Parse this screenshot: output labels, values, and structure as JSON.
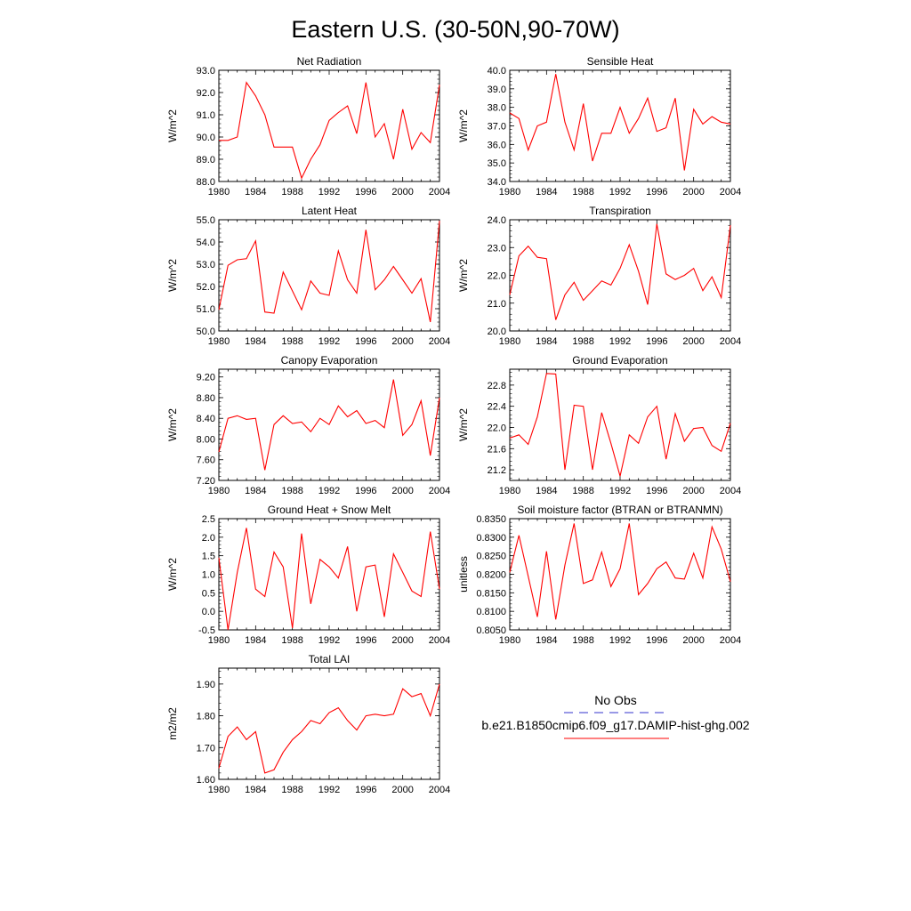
{
  "title": "Eastern U.S. (30-50N,90-70W)",
  "legend": {
    "obs_label": "No Obs",
    "model_label": "b.e21.B1850cmip6.f09_g17.DAMIP-hist-ghg.002",
    "obs_color": "#3333cc",
    "model_color": "#ff0000"
  },
  "chart_data": [
    {
      "type": "line",
      "title": "Net Radiation",
      "ylabel": "W/m^2",
      "xlim": [
        1980,
        2004
      ],
      "ylim": [
        88.0,
        93.0
      ],
      "x_ticks": [
        "1980",
        "1984",
        "1988",
        "1992",
        "1996",
        "2000",
        "2004"
      ],
      "y_ticks": [
        "88.0",
        "89.0",
        "90.0",
        "91.0",
        "92.0",
        "93.0"
      ],
      "x": [
        1980,
        1981,
        1982,
        1983,
        1984,
        1985,
        1986,
        1987,
        1988,
        1989,
        1990,
        1991,
        1992,
        1993,
        1994,
        1995,
        1996,
        1997,
        1998,
        1999,
        2000,
        2001,
        2002,
        2003,
        2004
      ],
      "values": [
        89.85,
        89.85,
        90.0,
        92.45,
        91.85,
        91.0,
        89.55,
        89.55,
        89.55,
        88.15,
        89.0,
        89.65,
        90.75,
        91.1,
        91.4,
        90.15,
        92.45,
        90.0,
        90.6,
        89.0,
        91.25,
        89.45,
        90.2,
        89.75,
        92.35
      ]
    },
    {
      "type": "line",
      "title": "Sensible Heat",
      "ylabel": "W/m^2",
      "xlim": [
        1980,
        2004
      ],
      "ylim": [
        34.0,
        40.0
      ],
      "x_ticks": [
        "1980",
        "1984",
        "1988",
        "1992",
        "1996",
        "2000",
        "2004"
      ],
      "y_ticks": [
        "34.0",
        "35.0",
        "36.0",
        "37.0",
        "38.0",
        "39.0",
        "40.0"
      ],
      "x": [
        1980,
        1981,
        1982,
        1983,
        1984,
        1985,
        1986,
        1987,
        1988,
        1989,
        1990,
        1991,
        1992,
        1993,
        1994,
        1995,
        1996,
        1997,
        1998,
        1999,
        2000,
        2001,
        2002,
        2003,
        2004
      ],
      "values": [
        37.7,
        37.4,
        35.7,
        37.0,
        37.2,
        39.8,
        37.2,
        35.7,
        38.2,
        35.1,
        36.6,
        36.6,
        38.0,
        36.6,
        37.4,
        38.5,
        36.7,
        36.9,
        38.5,
        34.6,
        37.9,
        37.1,
        37.5,
        37.2,
        37.1
      ]
    },
    {
      "type": "line",
      "title": "Latent Heat",
      "ylabel": "W/m^2",
      "xlim": [
        1980,
        2004
      ],
      "ylim": [
        50.0,
        55.0
      ],
      "x_ticks": [
        "1980",
        "1984",
        "1988",
        "1992",
        "1996",
        "2000",
        "2004"
      ],
      "y_ticks": [
        "50.0",
        "51.0",
        "52.0",
        "53.0",
        "54.0",
        "55.0"
      ],
      "x": [
        1980,
        1981,
        1982,
        1983,
        1984,
        1985,
        1986,
        1987,
        1988,
        1989,
        1990,
        1991,
        1992,
        1993,
        1994,
        1995,
        1996,
        1997,
        1998,
        1999,
        2000,
        2001,
        2002,
        2003,
        2004
      ],
      "values": [
        50.95,
        52.95,
        53.2,
        53.25,
        54.05,
        50.85,
        50.8,
        52.65,
        51.8,
        50.95,
        52.25,
        51.7,
        51.6,
        53.6,
        52.3,
        51.7,
        54.55,
        51.85,
        52.3,
        52.9,
        52.3,
        51.7,
        52.35,
        50.4,
        54.95
      ]
    },
    {
      "type": "line",
      "title": "Transpiration",
      "ylabel": "W/m^2",
      "xlim": [
        1980,
        2004
      ],
      "ylim": [
        20.0,
        24.0
      ],
      "x_ticks": [
        "1980",
        "1984",
        "1988",
        "1992",
        "1996",
        "2000",
        "2004"
      ],
      "y_ticks": [
        "20.0",
        "21.0",
        "22.0",
        "23.0",
        "24.0"
      ],
      "x": [
        1980,
        1981,
        1982,
        1983,
        1984,
        1985,
        1986,
        1987,
        1988,
        1989,
        1990,
        1991,
        1992,
        1993,
        1994,
        1995,
        1996,
        1997,
        1998,
        1999,
        2000,
        2001,
        2002,
        2003,
        2004
      ],
      "values": [
        21.3,
        22.7,
        23.05,
        22.65,
        22.6,
        20.4,
        21.3,
        21.75,
        21.1,
        21.45,
        21.8,
        21.65,
        22.25,
        23.1,
        22.15,
        20.95,
        23.85,
        22.05,
        21.85,
        22.0,
        22.25,
        21.45,
        21.95,
        21.2,
        23.8
      ]
    },
    {
      "type": "line",
      "title": "Canopy Evaporation",
      "ylabel": "W/m^2",
      "xlim": [
        1980,
        2004
      ],
      "ylim": [
        7.2,
        9.35
      ],
      "x_ticks": [
        "1980",
        "1984",
        "1988",
        "1992",
        "1996",
        "2000",
        "2004"
      ],
      "y_ticks": [
        "7.20",
        "7.60",
        "8.00",
        "8.40",
        "8.80",
        "9.20"
      ],
      "x": [
        1980,
        1981,
        1982,
        1983,
        1984,
        1985,
        1986,
        1987,
        1988,
        1989,
        1990,
        1991,
        1992,
        1993,
        1994,
        1995,
        1996,
        1997,
        1998,
        1999,
        2000,
        2001,
        2002,
        2003,
        2004
      ],
      "values": [
        7.75,
        8.4,
        8.45,
        8.38,
        8.4,
        7.4,
        8.28,
        8.45,
        8.3,
        8.33,
        8.14,
        8.4,
        8.28,
        8.64,
        8.43,
        8.55,
        8.3,
        8.36,
        8.22,
        9.15,
        8.07,
        8.28,
        8.74,
        7.68,
        8.8
      ]
    },
    {
      "type": "line",
      "title": "Ground Evaporation",
      "ylabel": "W/m^2",
      "xlim": [
        1980,
        2004
      ],
      "ylim": [
        21.0,
        23.1
      ],
      "x_ticks": [
        "1980",
        "1984",
        "1988",
        "1992",
        "1996",
        "2000",
        "2004"
      ],
      "y_ticks": [
        "21.2",
        "21.6",
        "22.0",
        "22.4",
        "22.8"
      ],
      "x": [
        1980,
        1981,
        1982,
        1983,
        1984,
        1985,
        1986,
        1987,
        1988,
        1989,
        1990,
        1991,
        1992,
        1993,
        1994,
        1995,
        1996,
        1997,
        1998,
        1999,
        2000,
        2001,
        2002,
        2003,
        2004
      ],
      "values": [
        21.8,
        21.86,
        21.68,
        22.2,
        23.02,
        23.01,
        21.2,
        22.42,
        22.4,
        21.2,
        22.28,
        21.7,
        21.08,
        21.86,
        21.7,
        22.2,
        22.4,
        21.4,
        22.26,
        21.74,
        21.98,
        22.0,
        21.66,
        21.55,
        22.08
      ]
    },
    {
      "type": "line",
      "title": "Ground Heat + Snow Melt",
      "ylabel": "W/m^2",
      "xlim": [
        1980,
        2004
      ],
      "ylim": [
        -0.5,
        2.5
      ],
      "x_ticks": [
        "1980",
        "1984",
        "1988",
        "1992",
        "1996",
        "2000",
        "2004"
      ],
      "y_ticks": [
        "-0.5",
        "0.0",
        "0.5",
        "1.0",
        "1.5",
        "2.0",
        "2.5"
      ],
      "x": [
        1980,
        1981,
        1982,
        1983,
        1984,
        1985,
        1986,
        1987,
        1988,
        1989,
        1990,
        1991,
        1992,
        1993,
        1994,
        1995,
        1996,
        1997,
        1998,
        1999,
        2000,
        2001,
        2002,
        2003,
        2004
      ],
      "values": [
        1.45,
        -0.5,
        1.05,
        2.25,
        0.6,
        0.4,
        1.6,
        1.2,
        -0.45,
        2.1,
        0.2,
        1.4,
        1.2,
        0.9,
        1.75,
        0.0,
        1.2,
        1.25,
        -0.15,
        1.55,
        1.05,
        0.55,
        0.4,
        2.15,
        0.6
      ]
    },
    {
      "type": "line",
      "title": "Soil moisture factor (BTRAN or BTRANMN)",
      "ylabel": "unitless",
      "xlim": [
        1980,
        2004
      ],
      "ylim": [
        0.805,
        0.835
      ],
      "x_ticks": [
        "1980",
        "1984",
        "1988",
        "1992",
        "1996",
        "2000",
        "2004"
      ],
      "y_ticks": [
        "0.8050",
        "0.8100",
        "0.8150",
        "0.8200",
        "0.8250",
        "0.8300",
        "0.8350"
      ],
      "x": [
        1980,
        1981,
        1982,
        1983,
        1984,
        1985,
        1986,
        1987,
        1988,
        1989,
        1990,
        1991,
        1992,
        1993,
        1994,
        1995,
        1996,
        1997,
        1998,
        1999,
        2000,
        2001,
        2002,
        2003,
        2004
      ],
      "values": [
        0.8205,
        0.8305,
        0.8195,
        0.8085,
        0.8262,
        0.8078,
        0.8225,
        0.8337,
        0.8175,
        0.8185,
        0.826,
        0.8167,
        0.8215,
        0.8337,
        0.8145,
        0.8175,
        0.8215,
        0.8233,
        0.819,
        0.8187,
        0.8257,
        0.819,
        0.8328,
        0.8268,
        0.818
      ]
    },
    {
      "type": "line",
      "title": "Total LAI",
      "ylabel": "m2/m2",
      "xlim": [
        1980,
        2004
      ],
      "ylim": [
        1.6,
        1.95
      ],
      "x_ticks": [
        "1980",
        "1984",
        "1988",
        "1992",
        "1996",
        "2000",
        "2004"
      ],
      "y_ticks": [
        "1.60",
        "1.70",
        "1.80",
        "1.90"
      ],
      "x": [
        1980,
        1981,
        1982,
        1983,
        1984,
        1985,
        1986,
        1987,
        1988,
        1989,
        1990,
        1991,
        1992,
        1993,
        1994,
        1995,
        1996,
        1997,
        1998,
        1999,
        2000,
        2001,
        2002,
        2003,
        2004
      ],
      "values": [
        1.635,
        1.735,
        1.765,
        1.725,
        1.75,
        1.62,
        1.63,
        1.685,
        1.725,
        1.75,
        1.785,
        1.775,
        1.81,
        1.825,
        1.785,
        1.755,
        1.8,
        1.805,
        1.8,
        1.805,
        1.885,
        1.86,
        1.87,
        1.8,
        1.9
      ]
    }
  ]
}
